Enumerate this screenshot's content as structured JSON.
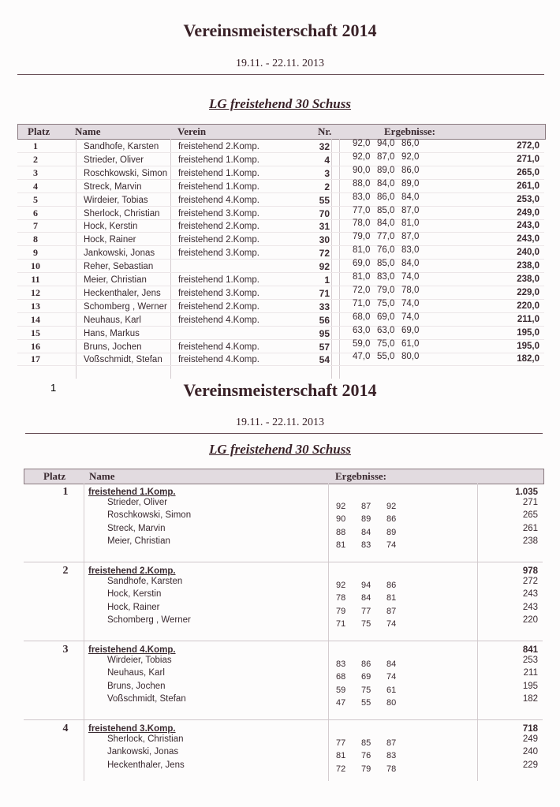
{
  "page1": {
    "title": "Vereinsmeisterschaft 2014",
    "date": "19.11. - 22.11. 2013",
    "subtitle": "LG freistehend 30 Schuss",
    "headers": {
      "platz": "Platz",
      "name": "Name",
      "verein": "Verein",
      "nr": "Nr.",
      "ergebnisse": "Ergebnisse:"
    },
    "rows": [
      {
        "platz": "1",
        "name": "Sandhofe, Karsten",
        "verein": "freistehend 2.Komp.",
        "nr": "32",
        "s1": "92,0",
        "s2": "94,0",
        "s3": "86,0",
        "total": "272,0"
      },
      {
        "platz": "2",
        "name": "Strieder, Oliver",
        "verein": "freistehend 1.Komp.",
        "nr": "4",
        "s1": "92,0",
        "s2": "87,0",
        "s3": "92,0",
        "total": "271,0"
      },
      {
        "platz": "3",
        "name": "Roschkowski, Simon",
        "verein": "freistehend 1.Komp.",
        "nr": "3",
        "s1": "90,0",
        "s2": "89,0",
        "s3": "86,0",
        "total": "265,0"
      },
      {
        "platz": "4",
        "name": "Streck, Marvin",
        "verein": "freistehend 1.Komp.",
        "nr": "2",
        "s1": "88,0",
        "s2": "84,0",
        "s3": "89,0",
        "total": "261,0"
      },
      {
        "platz": "5",
        "name": "Wirdeier, Tobias",
        "verein": "freistehend 4.Komp.",
        "nr": "55",
        "s1": "83,0",
        "s2": "86,0",
        "s3": "84,0",
        "total": "253,0"
      },
      {
        "platz": "6",
        "name": "Sherlock, Christian",
        "verein": "freistehend 3.Komp.",
        "nr": "70",
        "s1": "77,0",
        "s2": "85,0",
        "s3": "87,0",
        "total": "249,0"
      },
      {
        "platz": "7",
        "name": "Hock, Kerstin",
        "verein": "freistehend 2.Komp.",
        "nr": "31",
        "s1": "78,0",
        "s2": "84,0",
        "s3": "81,0",
        "total": "243,0"
      },
      {
        "platz": "8",
        "name": "Hock, Rainer",
        "verein": "freistehend 2.Komp.",
        "nr": "30",
        "s1": "79,0",
        "s2": "77,0",
        "s3": "87,0",
        "total": "243,0"
      },
      {
        "platz": "9",
        "name": "Jankowski, Jonas",
        "verein": "freistehend 3.Komp.",
        "nr": "72",
        "s1": "81,0",
        "s2": "76,0",
        "s3": "83,0",
        "total": "240,0"
      },
      {
        "platz": "10",
        "name": "Reher, Sebastian",
        "verein": "",
        "nr": "92",
        "s1": "69,0",
        "s2": "85,0",
        "s3": "84,0",
        "total": "238,0"
      },
      {
        "platz": "11",
        "name": "Meier, Christian",
        "verein": "freistehend 1.Komp.",
        "nr": "1",
        "s1": "81,0",
        "s2": "83,0",
        "s3": "74,0",
        "total": "238,0"
      },
      {
        "platz": "12",
        "name": "Heckenthaler, Jens",
        "verein": "freistehend 3.Komp.",
        "nr": "71",
        "s1": "72,0",
        "s2": "79,0",
        "s3": "78,0",
        "total": "229,0"
      },
      {
        "platz": "13",
        "name": "Schomberg , Werner",
        "verein": "freistehend 2.Komp.",
        "nr": "33",
        "s1": "71,0",
        "s2": "75,0",
        "s3": "74,0",
        "total": "220,0"
      },
      {
        "platz": "14",
        "name": "Neuhaus, Karl",
        "verein": "freistehend 4.Komp.",
        "nr": "56",
        "s1": "68,0",
        "s2": "69,0",
        "s3": "74,0",
        "total": "211,0"
      },
      {
        "platz": "15",
        "name": "Hans, Markus",
        "verein": "",
        "nr": "95",
        "s1": "63,0",
        "s2": "63,0",
        "s3": "69,0",
        "total": "195,0"
      },
      {
        "platz": "16",
        "name": "Bruns, Jochen",
        "verein": "freistehend 4.Komp.",
        "nr": "57",
        "s1": "59,0",
        "s2": "75,0",
        "s3": "61,0",
        "total": "195,0"
      },
      {
        "platz": "17",
        "name": "Voßschmidt, Stefan",
        "verein": "freistehend 4.Komp.",
        "nr": "54",
        "s1": "47,0",
        "s2": "55,0",
        "s3": "80,0",
        "total": "182,0"
      }
    ]
  },
  "page_number": "1",
  "page2": {
    "title": "Vereinsmeisterschaft 2014",
    "date": "19.11. - 22.11. 2013",
    "subtitle": "LG freistehend 30 Schuss",
    "headers": {
      "platz": "Platz",
      "name": "Name",
      "ergebnisse": "Ergebnisse:"
    },
    "teams": [
      {
        "platz": "1",
        "name": "freistehend 1.Komp.",
        "total": "1.035",
        "members": [
          {
            "name": "Strieder, Oliver",
            "s1": "92",
            "s2": "87",
            "s3": "92",
            "total": "271"
          },
          {
            "name": "Roschkowski, Simon",
            "s1": "90",
            "s2": "89",
            "s3": "86",
            "total": "265"
          },
          {
            "name": "Streck, Marvin",
            "s1": "88",
            "s2": "84",
            "s3": "89",
            "total": "261"
          },
          {
            "name": "Meier, Christian",
            "s1": "81",
            "s2": "83",
            "s3": "74",
            "total": "238"
          }
        ]
      },
      {
        "platz": "2",
        "name": "freistehend 2.Komp.",
        "total": "978",
        "members": [
          {
            "name": "Sandhofe, Karsten",
            "s1": "92",
            "s2": "94",
            "s3": "86",
            "total": "272"
          },
          {
            "name": "Hock, Kerstin",
            "s1": "78",
            "s2": "84",
            "s3": "81",
            "total": "243"
          },
          {
            "name": "Hock, Rainer",
            "s1": "79",
            "s2": "77",
            "s3": "87",
            "total": "243"
          },
          {
            "name": "Schomberg , Werner",
            "s1": "71",
            "s2": "75",
            "s3": "74",
            "total": "220"
          }
        ]
      },
      {
        "platz": "3",
        "name": "freistehend 4.Komp.",
        "total": "841",
        "members": [
          {
            "name": "Wirdeier, Tobias",
            "s1": "83",
            "s2": "86",
            "s3": "84",
            "total": "253"
          },
          {
            "name": "Neuhaus, Karl",
            "s1": "68",
            "s2": "69",
            "s3": "74",
            "total": "211"
          },
          {
            "name": "Bruns, Jochen",
            "s1": "59",
            "s2": "75",
            "s3": "61",
            "total": "195"
          },
          {
            "name": "Voßschmidt, Stefan",
            "s1": "47",
            "s2": "55",
            "s3": "80",
            "total": "182"
          }
        ]
      },
      {
        "platz": "4",
        "name": "freistehend 3.Komp.",
        "total": "718",
        "members": [
          {
            "name": "Sherlock, Christian",
            "s1": "77",
            "s2": "85",
            "s3": "87",
            "total": "249"
          },
          {
            "name": "Jankowski, Jonas",
            "s1": "81",
            "s2": "76",
            "s3": "83",
            "total": "240"
          },
          {
            "name": "Heckenthaler, Jens",
            "s1": "72",
            "s2": "79",
            "s3": "78",
            "total": "229"
          }
        ]
      }
    ]
  }
}
